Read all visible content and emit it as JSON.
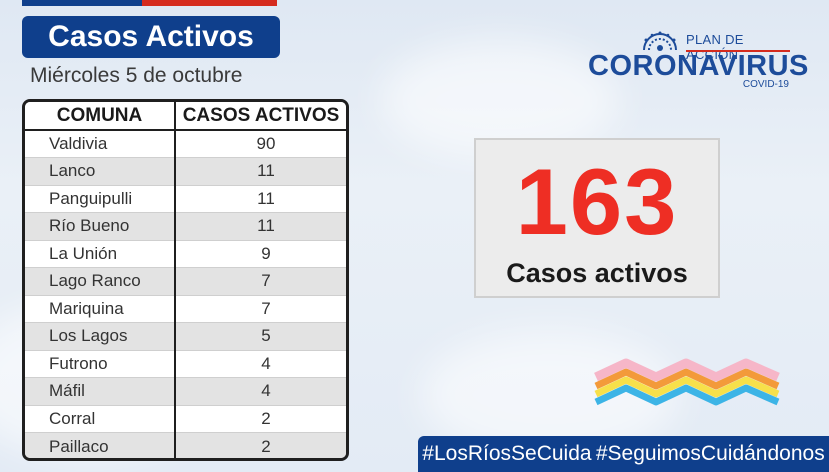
{
  "header": {
    "title": "Casos Activos",
    "date": "Miércoles 5 de octubre"
  },
  "logo": {
    "plan_label": "PLAN DE ACCIÓN",
    "main_label": "CORONAVIRUS",
    "sub_label": "COVID-19"
  },
  "table": {
    "headers": [
      "COMUNA",
      "CASOS ACTIVOS"
    ],
    "rows": [
      {
        "comuna": "Valdivia",
        "casos": "90"
      },
      {
        "comuna": "Lanco",
        "casos": "11"
      },
      {
        "comuna": "Panguipulli",
        "casos": "11"
      },
      {
        "comuna": "Río Bueno",
        "casos": "11"
      },
      {
        "comuna": "La Unión",
        "casos": "9"
      },
      {
        "comuna": "Lago Ranco",
        "casos": "7"
      },
      {
        "comuna": "Mariquina",
        "casos": "7"
      },
      {
        "comuna": "Los Lagos",
        "casos": "5"
      },
      {
        "comuna": "Futrono",
        "casos": "4"
      },
      {
        "comuna": "Máfil",
        "casos": "4"
      },
      {
        "comuna": "Corral",
        "casos": "2"
      },
      {
        "comuna": "Paillaco",
        "casos": "2"
      }
    ]
  },
  "summary": {
    "total": "163",
    "label": "Casos activos"
  },
  "hashtags": [
    "#LosRíosSeCuida",
    "#SeguimosCuidándonos"
  ],
  "colors": {
    "brand_blue": "#0f3f8c",
    "accent_red": "#ee2e24"
  },
  "icons": [
    "virus-icon",
    "zigzag-decoration"
  ]
}
